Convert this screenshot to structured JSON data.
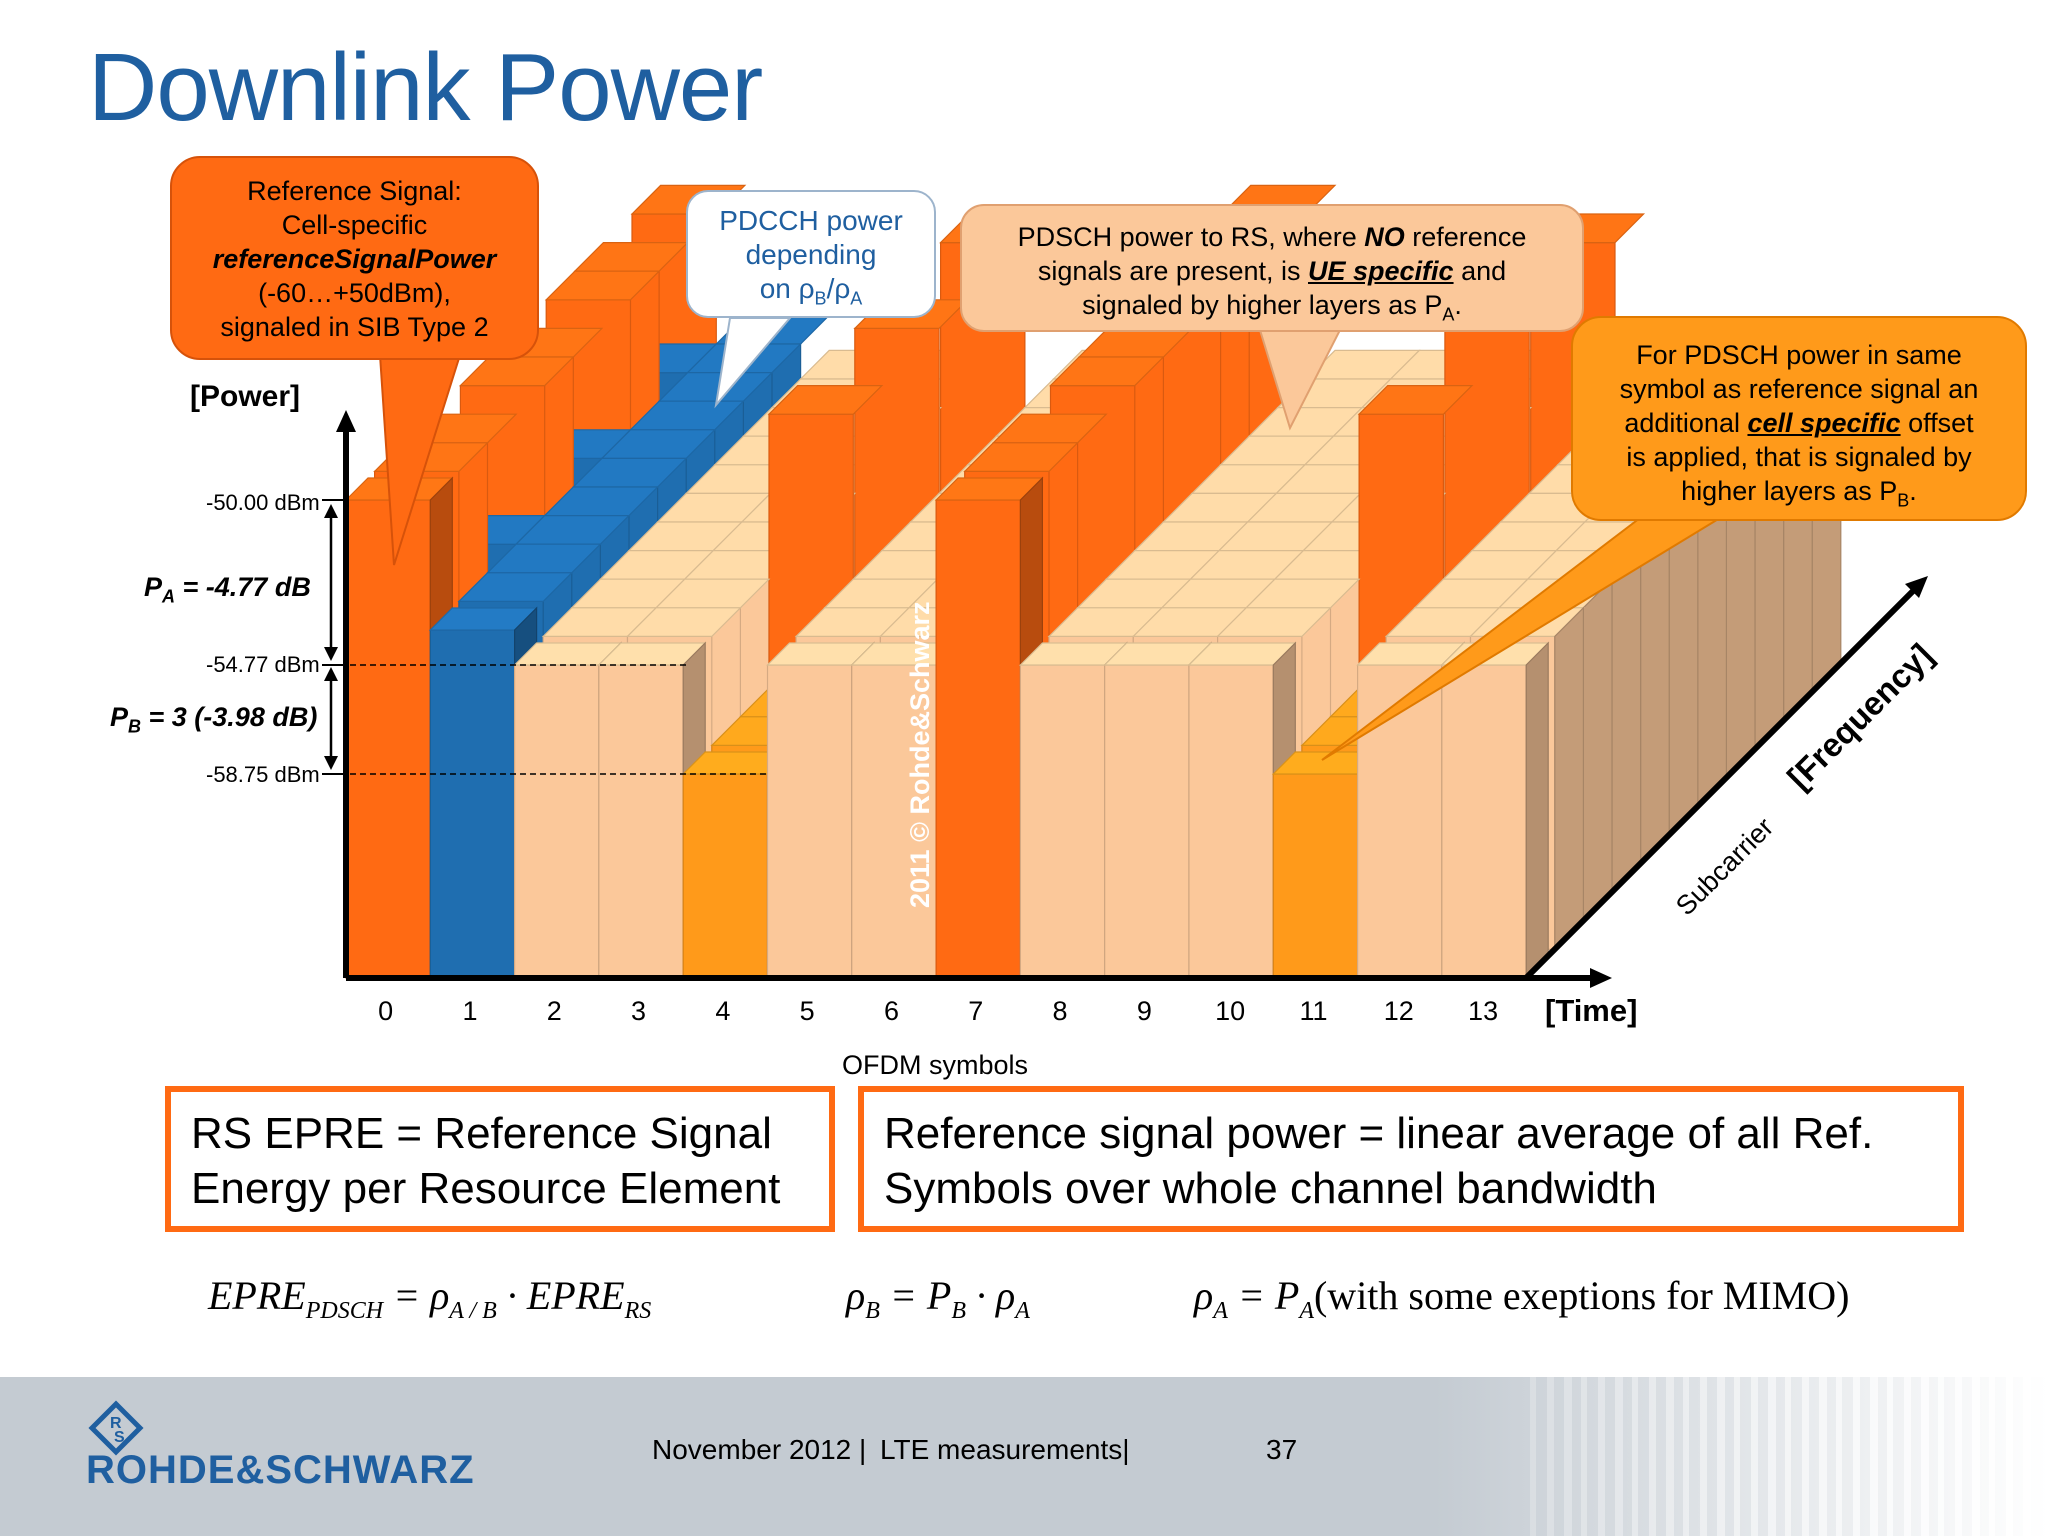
{
  "title": "Downlink Power",
  "callouts": {
    "rs": {
      "line1": "Reference Signal:",
      "line2": "Cell-specific",
      "line3": "referenceSignalPower",
      "line4": "(-60…+50dBm),",
      "line5": "signaled in SIB Type 2"
    },
    "pdcch": {
      "line1": "PDCCH power",
      "line2": "depending",
      "line3": "on ρ",
      "sub_b": "B",
      "slash": "/ρ",
      "sub_a": "A"
    },
    "pa": {
      "line1_pre": "PDSCH power to RS, where ",
      "line1_em": "NO",
      "line1_post": " reference",
      "line2_pre": "signals are present, is ",
      "line2_em": "UE specific",
      "line2_post": " and",
      "line3": "signaled by higher layers as P",
      "line3_sub": "A",
      "line3_end": "."
    },
    "pb": {
      "line1": "For PDSCH power in same",
      "line2": "symbol as reference signal an",
      "line3_pre": "additional ",
      "line3_em": "cell specific",
      "line3_post": " offset",
      "line4": "is applied, that is signaled by",
      "line5": "higher layers as P",
      "line5_sub": "B",
      "line5_end": "."
    }
  },
  "axes": {
    "y_label": "[Power]",
    "x_label": "[Time]",
    "x_caption": "OFDM symbols",
    "depth_label": "[Frequency]",
    "depth_caption": "Subcarrier",
    "levels": [
      "-50.00 dBm",
      "-54.77 dBm",
      "-58.75 dBm"
    ],
    "pa_label_pre": "P",
    "pa_label_sub": "A",
    "pa_label_post": " = -4.77 dB",
    "pb_label_pre": "P",
    "pb_label_sub": "B",
    "pb_label_post": " = 3 (-3.98 dB)",
    "symbols": [
      "0",
      "1",
      "2",
      "3",
      "4",
      "5",
      "6",
      "7",
      "8",
      "9",
      "10",
      "11",
      "12",
      "13"
    ]
  },
  "watermark": "2011 © Rohde&Schwarz",
  "boxes": {
    "left_line1": "RS EPRE = Reference Signal",
    "left_line2": "Energy per Resource Element",
    "right_line1": "Reference signal power = linear average of all Ref.",
    "right_line2": "Symbols over whole channel bandwidth"
  },
  "formulas": {
    "f1_lhs": "EPRE",
    "f1_lhs_sub": "PDSCH",
    "f1_eq": " = ρ",
    "f1_rho_sub": "A / B",
    "f1_dot": " · EPRE",
    "f1_rs_sub": "RS",
    "f2_lhs": "ρ",
    "f2_lhs_sub": "B",
    "f2_eq": " = P",
    "f2_p_sub": "B",
    "f2_dot": " · ρ",
    "f2_rho_sub": "A",
    "f3_lhs": "ρ",
    "f3_lhs_sub": "A",
    "f3_eq": " = P",
    "f3_p_sub": "A",
    "f3_note": "(with some exeptions for MIMO)"
  },
  "footer": {
    "brand": "ROHDE&SCHWARZ",
    "date": "November 2012 |",
    "topic": "LTE measurements|",
    "page": "37"
  },
  "colors": {
    "rs": "#ff6a13",
    "pdcch": "#1f6eb0",
    "pdsch_no_rs": "#fbc89a",
    "pdsch_rs_symbol": "#ff9a1a",
    "title": "#1f5fa0"
  }
}
